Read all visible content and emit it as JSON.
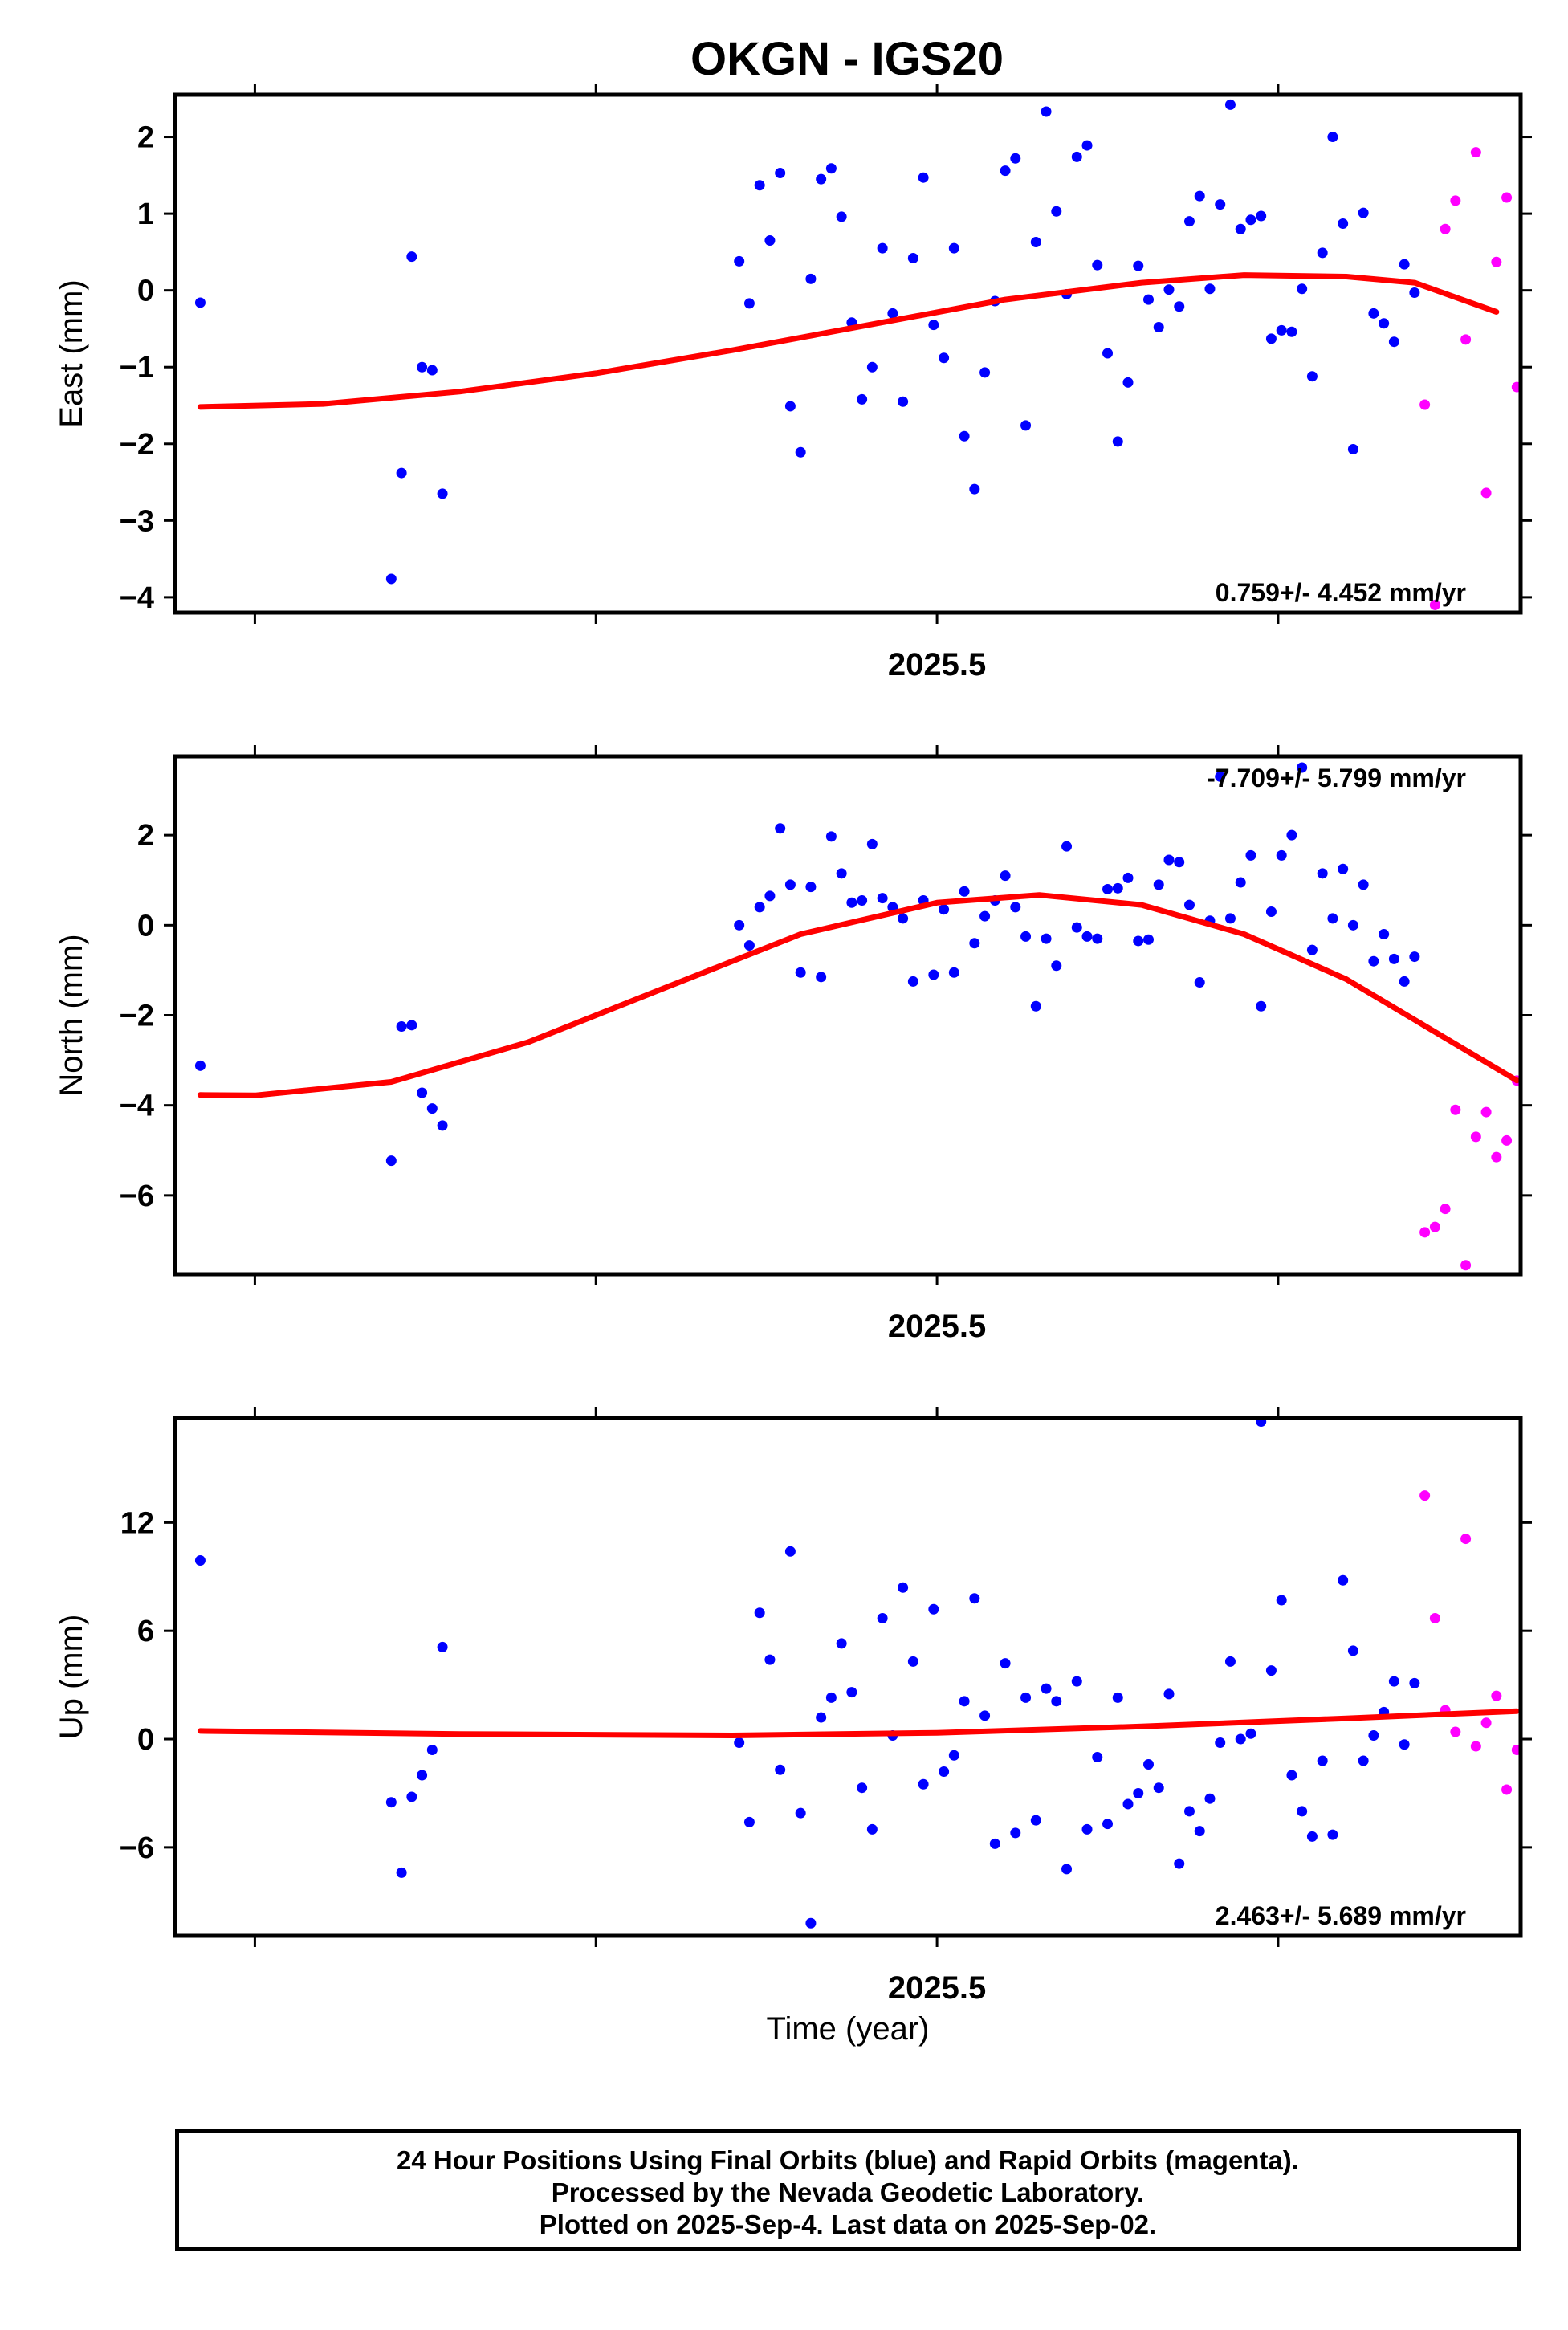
{
  "title": "OKGN - IGS20",
  "xlabel": "Time (year)",
  "footer": {
    "line1": "24 Hour Positions Using Final Orbits (blue) and Rapid Orbits (magenta).",
    "line2": "Processed by the Nevada Geodetic Laboratory.",
    "line3": "Plotted on 2025-Sep-4. Last data on 2025-Sep-02."
  },
  "colors": {
    "final": "#0000ff",
    "rapid": "#ff00ff",
    "fit": "#ff0000"
  },
  "chart_data": [
    {
      "type": "scatter",
      "ylabel": "East (mm)",
      "xlim": [
        2025.2766,
        2025.6711
      ],
      "ylim": [
        -4.2,
        2.55
      ],
      "yticks": [
        -4,
        -3,
        -2,
        -1,
        0,
        1,
        2
      ],
      "xtick_labels": [
        {
          "value": 2025.5,
          "label": "2025.5"
        }
      ],
      "rate": "0.759+/- 4.452 mm/yr",
      "fit": [
        [
          2025.284,
          -1.52
        ],
        [
          2025.32,
          -1.48
        ],
        [
          2025.36,
          -1.32
        ],
        [
          2025.4,
          -1.08
        ],
        [
          2025.44,
          -0.78
        ],
        [
          2025.48,
          -0.45
        ],
        [
          2025.52,
          -0.12
        ],
        [
          2025.56,
          0.1
        ],
        [
          2025.59,
          0.2
        ],
        [
          2025.62,
          0.18
        ],
        [
          2025.64,
          0.1
        ],
        [
          2025.664,
          -0.28
        ]
      ],
      "final": [
        [
          2025.284,
          -0.16
        ],
        [
          2025.34,
          -3.76
        ],
        [
          2025.343,
          -2.38
        ],
        [
          2025.346,
          0.44
        ],
        [
          2025.349,
          -1.0
        ],
        [
          2025.352,
          -1.04
        ],
        [
          2025.355,
          -2.65
        ],
        [
          2025.442,
          0.38
        ],
        [
          2025.445,
          -0.17
        ],
        [
          2025.448,
          1.37
        ],
        [
          2025.451,
          0.65
        ],
        [
          2025.454,
          1.53
        ],
        [
          2025.457,
          -1.51
        ],
        [
          2025.46,
          -2.11
        ],
        [
          2025.463,
          0.15
        ],
        [
          2025.466,
          1.45
        ],
        [
          2025.469,
          1.59
        ],
        [
          2025.472,
          0.96
        ],
        [
          2025.475,
          -0.42
        ],
        [
          2025.478,
          -1.42
        ],
        [
          2025.481,
          -1.0
        ],
        [
          2025.484,
          0.55
        ],
        [
          2025.487,
          -0.3
        ],
        [
          2025.49,
          -1.45
        ],
        [
          2025.493,
          0.42
        ],
        [
          2025.496,
          1.47
        ],
        [
          2025.499,
          -0.45
        ],
        [
          2025.502,
          -0.88
        ],
        [
          2025.505,
          0.55
        ],
        [
          2025.508,
          -1.9
        ],
        [
          2025.511,
          -2.59
        ],
        [
          2025.514,
          -1.07
        ],
        [
          2025.517,
          -0.14
        ],
        [
          2025.52,
          1.56
        ],
        [
          2025.523,
          1.72
        ],
        [
          2025.526,
          -1.76
        ],
        [
          2025.529,
          0.63
        ],
        [
          2025.532,
          2.33
        ],
        [
          2025.535,
          1.03
        ],
        [
          2025.538,
          -0.05
        ],
        [
          2025.541,
          1.74
        ],
        [
          2025.544,
          1.89
        ],
        [
          2025.547,
          0.33
        ],
        [
          2025.55,
          -0.82
        ],
        [
          2025.553,
          -1.97
        ],
        [
          2025.556,
          -1.2
        ],
        [
          2025.559,
          0.32
        ],
        [
          2025.562,
          -0.12
        ],
        [
          2025.565,
          -0.48
        ],
        [
          2025.568,
          0.01
        ],
        [
          2025.571,
          -0.21
        ],
        [
          2025.574,
          0.9
        ],
        [
          2025.577,
          1.23
        ],
        [
          2025.58,
          0.02
        ],
        [
          2025.583,
          1.12
        ],
        [
          2025.586,
          2.42
        ],
        [
          2025.589,
          0.8
        ],
        [
          2025.592,
          0.92
        ],
        [
          2025.595,
          0.97
        ],
        [
          2025.598,
          -0.63
        ],
        [
          2025.601,
          -0.52
        ],
        [
          2025.604,
          -0.54
        ],
        [
          2025.607,
          0.02
        ],
        [
          2025.61,
          -1.12
        ],
        [
          2025.613,
          0.49
        ],
        [
          2025.616,
          2.0
        ],
        [
          2025.619,
          0.87
        ],
        [
          2025.622,
          -2.07
        ],
        [
          2025.625,
          1.01
        ],
        [
          2025.628,
          -0.3
        ],
        [
          2025.631,
          -0.43
        ],
        [
          2025.634,
          -0.67
        ],
        [
          2025.637,
          0.34
        ],
        [
          2025.64,
          -0.03
        ]
      ],
      "rapid": [
        [
          2025.643,
          -1.49
        ],
        [
          2025.646,
          -4.1
        ],
        [
          2025.649,
          0.8
        ],
        [
          2025.652,
          1.17
        ],
        [
          2025.655,
          -0.64
        ],
        [
          2025.658,
          1.8
        ],
        [
          2025.661,
          -2.64
        ],
        [
          2025.664,
          0.37
        ],
        [
          2025.667,
          1.21
        ],
        [
          2025.67,
          -1.26
        ]
      ]
    },
    {
      "type": "scatter",
      "ylabel": "North (mm)",
      "xlim": [
        2025.2766,
        2025.6711
      ],
      "ylim": [
        -7.75,
        3.75
      ],
      "yticks": [
        -6,
        -4,
        -2,
        0,
        2
      ],
      "xtick_labels": [
        {
          "value": 2025.5,
          "label": "2025.5"
        }
      ],
      "rate": "-7.709+/- 5.799 mm/yr",
      "fit": [
        [
          2025.284,
          -3.77
        ],
        [
          2025.3,
          -3.78
        ],
        [
          2025.34,
          -3.48
        ],
        [
          2025.38,
          -2.6
        ],
        [
          2025.42,
          -1.4
        ],
        [
          2025.46,
          -0.2
        ],
        [
          2025.5,
          0.5
        ],
        [
          2025.53,
          0.67
        ],
        [
          2025.56,
          0.45
        ],
        [
          2025.59,
          -0.2
        ],
        [
          2025.62,
          -1.2
        ],
        [
          2025.64,
          -2.1
        ],
        [
          2025.67,
          -3.45
        ]
      ],
      "final": [
        [
          2025.284,
          -3.12
        ],
        [
          2025.34,
          -5.23
        ],
        [
          2025.343,
          -2.25
        ],
        [
          2025.346,
          -2.22
        ],
        [
          2025.349,
          -3.72
        ],
        [
          2025.352,
          -4.07
        ],
        [
          2025.355,
          -4.45
        ],
        [
          2025.442,
          0.0
        ],
        [
          2025.445,
          -0.45
        ],
        [
          2025.448,
          0.4
        ],
        [
          2025.451,
          0.65
        ],
        [
          2025.454,
          2.15
        ],
        [
          2025.457,
          0.9
        ],
        [
          2025.46,
          -1.05
        ],
        [
          2025.463,
          0.85
        ],
        [
          2025.466,
          -1.15
        ],
        [
          2025.469,
          1.97
        ],
        [
          2025.472,
          1.15
        ],
        [
          2025.475,
          0.5
        ],
        [
          2025.478,
          0.55
        ],
        [
          2025.481,
          1.8
        ],
        [
          2025.484,
          0.6
        ],
        [
          2025.487,
          0.4
        ],
        [
          2025.49,
          0.15
        ],
        [
          2025.493,
          -1.25
        ],
        [
          2025.496,
          0.55
        ],
        [
          2025.499,
          -1.1
        ],
        [
          2025.502,
          0.35
        ],
        [
          2025.505,
          -1.05
        ],
        [
          2025.508,
          0.75
        ],
        [
          2025.511,
          -0.4
        ],
        [
          2025.514,
          0.2
        ],
        [
          2025.517,
          0.55
        ],
        [
          2025.52,
          1.1
        ],
        [
          2025.523,
          0.4
        ],
        [
          2025.526,
          -0.25
        ],
        [
          2025.529,
          -1.8
        ],
        [
          2025.532,
          -0.3
        ],
        [
          2025.535,
          -0.9
        ],
        [
          2025.538,
          1.75
        ],
        [
          2025.541,
          -0.05
        ],
        [
          2025.544,
          -0.25
        ],
        [
          2025.547,
          -0.3
        ],
        [
          2025.55,
          0.8
        ],
        [
          2025.553,
          0.82
        ],
        [
          2025.556,
          1.05
        ],
        [
          2025.559,
          -0.35
        ],
        [
          2025.562,
          -0.32
        ],
        [
          2025.565,
          0.9
        ],
        [
          2025.568,
          1.45
        ],
        [
          2025.571,
          1.4
        ],
        [
          2025.574,
          0.45
        ],
        [
          2025.577,
          -1.27
        ],
        [
          2025.58,
          0.1
        ],
        [
          2025.583,
          3.3
        ],
        [
          2025.586,
          0.15
        ],
        [
          2025.589,
          0.95
        ],
        [
          2025.592,
          1.55
        ],
        [
          2025.595,
          -1.8
        ],
        [
          2025.598,
          0.3
        ],
        [
          2025.601,
          1.55
        ],
        [
          2025.604,
          2.0
        ],
        [
          2025.607,
          3.5
        ],
        [
          2025.61,
          -0.55
        ],
        [
          2025.613,
          1.15
        ],
        [
          2025.616,
          0.15
        ],
        [
          2025.619,
          1.25
        ],
        [
          2025.622,
          0.0
        ],
        [
          2025.625,
          0.9
        ],
        [
          2025.628,
          -0.8
        ],
        [
          2025.631,
          -0.2
        ],
        [
          2025.634,
          -0.75
        ],
        [
          2025.637,
          -1.25
        ],
        [
          2025.64,
          -0.7
        ]
      ],
      "rapid": [
        [
          2025.643,
          -6.82
        ],
        [
          2025.646,
          -6.7
        ],
        [
          2025.649,
          -6.3
        ],
        [
          2025.652,
          -4.1
        ],
        [
          2025.655,
          -7.55
        ],
        [
          2025.658,
          -4.7
        ],
        [
          2025.661,
          -4.15
        ],
        [
          2025.664,
          -5.15
        ],
        [
          2025.667,
          -4.78
        ],
        [
          2025.67,
          -3.45
        ]
      ]
    },
    {
      "type": "scatter",
      "ylabel": "Up (mm)",
      "xlim": [
        2025.2766,
        2025.6711
      ],
      "ylim": [
        -10.9,
        17.8
      ],
      "yticks": [
        -6,
        0,
        6,
        12
      ],
      "xtick_labels": [
        {
          "value": 2025.5,
          "label": "2025.5"
        }
      ],
      "rate": "2.463+/- 5.689 mm/yr",
      "fit": [
        [
          2025.284,
          0.45
        ],
        [
          2025.36,
          0.28
        ],
        [
          2025.44,
          0.2
        ],
        [
          2025.5,
          0.35
        ],
        [
          2025.56,
          0.7
        ],
        [
          2025.62,
          1.15
        ],
        [
          2025.67,
          1.55
        ]
      ],
      "final": [
        [
          2025.284,
          9.9
        ],
        [
          2025.34,
          -3.5
        ],
        [
          2025.343,
          -7.4
        ],
        [
          2025.346,
          -3.2
        ],
        [
          2025.349,
          -2.0
        ],
        [
          2025.352,
          -0.6
        ],
        [
          2025.355,
          5.1
        ],
        [
          2025.442,
          -0.2
        ],
        [
          2025.445,
          -4.6
        ],
        [
          2025.448,
          7.0
        ],
        [
          2025.451,
          4.4
        ],
        [
          2025.454,
          -1.7
        ],
        [
          2025.457,
          10.4
        ],
        [
          2025.46,
          -4.1
        ],
        [
          2025.463,
          -10.2
        ],
        [
          2025.466,
          1.2
        ],
        [
          2025.469,
          2.3
        ],
        [
          2025.472,
          5.3
        ],
        [
          2025.475,
          2.6
        ],
        [
          2025.478,
          -2.7
        ],
        [
          2025.481,
          -5.0
        ],
        [
          2025.484,
          6.7
        ],
        [
          2025.487,
          0.2
        ],
        [
          2025.49,
          8.4
        ],
        [
          2025.493,
          4.3
        ],
        [
          2025.496,
          -2.5
        ],
        [
          2025.499,
          7.2
        ],
        [
          2025.502,
          -1.8
        ],
        [
          2025.505,
          -0.9
        ],
        [
          2025.508,
          2.1
        ],
        [
          2025.511,
          7.8
        ],
        [
          2025.514,
          1.3
        ],
        [
          2025.517,
          -5.8
        ],
        [
          2025.52,
          4.2
        ],
        [
          2025.523,
          -5.2
        ],
        [
          2025.526,
          2.3
        ],
        [
          2025.529,
          -4.5
        ],
        [
          2025.532,
          2.8
        ],
        [
          2025.535,
          2.1
        ],
        [
          2025.538,
          -7.2
        ],
        [
          2025.541,
          3.2
        ],
        [
          2025.544,
          -5.0
        ],
        [
          2025.547,
          -1.0
        ],
        [
          2025.55,
          -4.7
        ],
        [
          2025.553,
          2.3
        ],
        [
          2025.556,
          -3.6
        ],
        [
          2025.559,
          -3.0
        ],
        [
          2025.562,
          -1.4
        ],
        [
          2025.565,
          -2.7
        ],
        [
          2025.568,
          2.5
        ],
        [
          2025.571,
          -6.9
        ],
        [
          2025.574,
          -4.0
        ],
        [
          2025.577,
          -5.1
        ],
        [
          2025.58,
          -3.3
        ],
        [
          2025.583,
          -0.2
        ],
        [
          2025.586,
          4.3
        ],
        [
          2025.589,
          0.0
        ],
        [
          2025.592,
          0.3
        ],
        [
          2025.595,
          17.6
        ],
        [
          2025.598,
          3.8
        ],
        [
          2025.601,
          7.7
        ],
        [
          2025.604,
          -2.0
        ],
        [
          2025.607,
          -4.0
        ],
        [
          2025.61,
          -5.4
        ],
        [
          2025.613,
          -1.2
        ],
        [
          2025.616,
          -5.3
        ],
        [
          2025.619,
          8.8
        ],
        [
          2025.622,
          4.9
        ],
        [
          2025.625,
          -1.2
        ],
        [
          2025.628,
          0.2
        ],
        [
          2025.631,
          1.5
        ],
        [
          2025.634,
          3.2
        ],
        [
          2025.637,
          -0.3
        ],
        [
          2025.64,
          3.1
        ]
      ],
      "rapid": [
        [
          2025.643,
          13.5
        ],
        [
          2025.646,
          6.7
        ],
        [
          2025.649,
          1.6
        ],
        [
          2025.652,
          0.4
        ],
        [
          2025.655,
          11.1
        ],
        [
          2025.658,
          -0.4
        ],
        [
          2025.661,
          0.9
        ],
        [
          2025.664,
          2.4
        ],
        [
          2025.667,
          -2.8
        ],
        [
          2025.67,
          -0.6
        ]
      ]
    }
  ]
}
